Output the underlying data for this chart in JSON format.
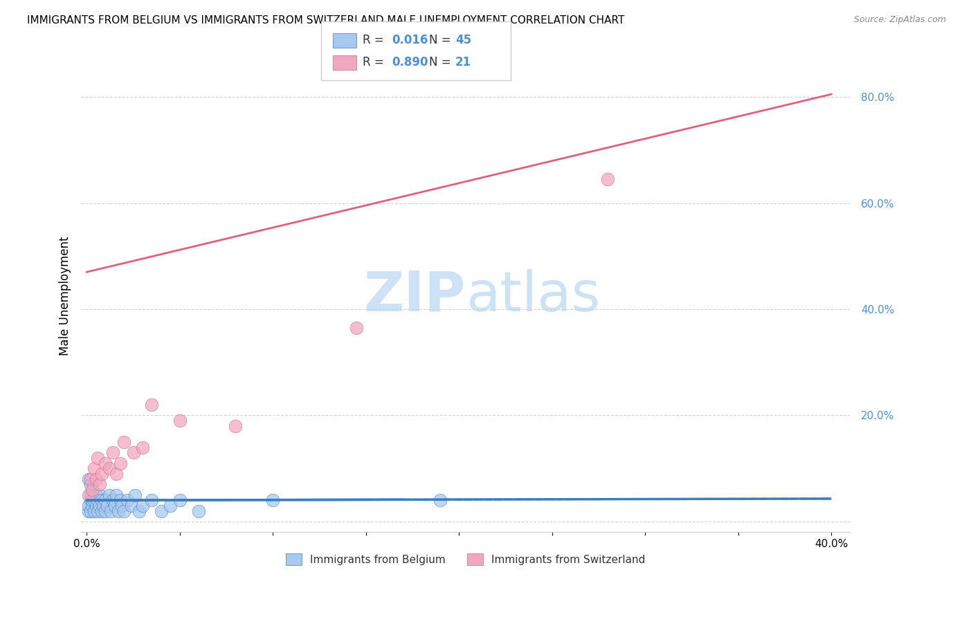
{
  "title": "IMMIGRANTS FROM BELGIUM VS IMMIGRANTS FROM SWITZERLAND MALE UNEMPLOYMENT CORRELATION CHART",
  "source": "Source: ZipAtlas.com",
  "ylabel": "Male Unemployment",
  "y_ticks": [
    0.0,
    0.2,
    0.4,
    0.6,
    0.8
  ],
  "y_tick_labels": [
    "",
    "20.0%",
    "40.0%",
    "60.0%",
    "80.0%"
  ],
  "x_ticks": [
    0.0,
    0.05,
    0.1,
    0.15,
    0.2,
    0.25,
    0.3,
    0.35,
    0.4
  ],
  "xlim": [
    -0.003,
    0.41
  ],
  "ylim": [
    -0.02,
    0.87
  ],
  "legend_r1": "0.016",
  "legend_n1": "45",
  "legend_r2": "0.890",
  "legend_n2": "21",
  "color_belgium": "#a8c8f0",
  "color_switzerland": "#f0a8c0",
  "trendline_belgium_color": "#3a7fc1",
  "trendline_switzerland_color": "#e0607a",
  "watermark_color": "#cde3f5",
  "background_color": "#ffffff",
  "belgium_x": [
    0.001,
    0.001,
    0.002,
    0.002,
    0.002,
    0.003,
    0.003,
    0.003,
    0.004,
    0.004,
    0.005,
    0.005,
    0.006,
    0.006,
    0.007,
    0.007,
    0.008,
    0.008,
    0.009,
    0.01,
    0.01,
    0.011,
    0.012,
    0.013,
    0.014,
    0.015,
    0.016,
    0.017,
    0.018,
    0.019,
    0.02,
    0.022,
    0.024,
    0.026,
    0.028,
    0.03,
    0.035,
    0.04,
    0.045,
    0.05,
    0.06,
    0.1,
    0.19,
    0.001,
    0.002
  ],
  "belgium_y": [
    0.02,
    0.03,
    0.04,
    0.02,
    0.05,
    0.03,
    0.04,
    0.06,
    0.02,
    0.04,
    0.03,
    0.05,
    0.02,
    0.04,
    0.03,
    0.05,
    0.02,
    0.04,
    0.03,
    0.02,
    0.04,
    0.03,
    0.05,
    0.02,
    0.04,
    0.03,
    0.05,
    0.02,
    0.04,
    0.03,
    0.02,
    0.04,
    0.03,
    0.05,
    0.02,
    0.03,
    0.04,
    0.02,
    0.03,
    0.04,
    0.02,
    0.04,
    0.04,
    0.08,
    0.07
  ],
  "switzerland_x": [
    0.001,
    0.002,
    0.003,
    0.004,
    0.005,
    0.006,
    0.007,
    0.008,
    0.01,
    0.012,
    0.014,
    0.016,
    0.018,
    0.02,
    0.025,
    0.03,
    0.035,
    0.05,
    0.08,
    0.145,
    0.28
  ],
  "switzerland_y": [
    0.05,
    0.08,
    0.06,
    0.1,
    0.08,
    0.12,
    0.07,
    0.09,
    0.11,
    0.1,
    0.13,
    0.09,
    0.11,
    0.15,
    0.13,
    0.14,
    0.22,
    0.19,
    0.18,
    0.365,
    0.645
  ],
  "trendline_switz_x0": 0.0,
  "trendline_switz_y0": 0.47,
  "trendline_switz_x1": 0.4,
  "trendline_switz_y1": 0.805,
  "trendline_belg_x0": 0.0,
  "trendline_belg_y0": 0.04,
  "trendline_belg_x1": 0.4,
  "trendline_belg_y1": 0.043
}
